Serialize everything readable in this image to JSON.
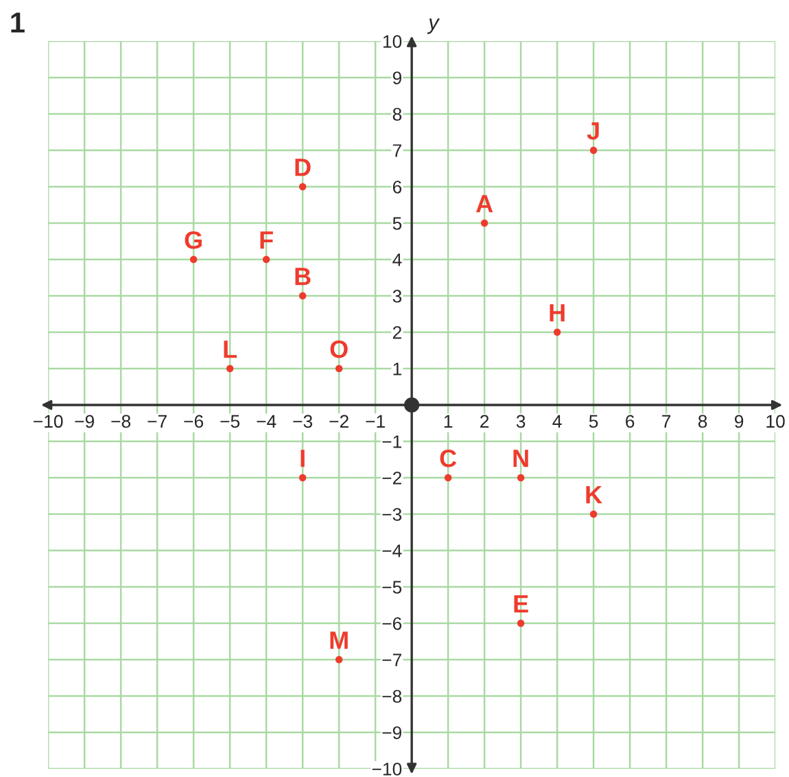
{
  "chart_data": {
    "type": "scatter",
    "title": "1",
    "ylabel": "y",
    "series": [
      {
        "color": "#ee3b2d",
        "x": [
          2,
          -3,
          1,
          -3,
          3,
          -4,
          -6,
          4,
          -3,
          5,
          5,
          -5,
          -2,
          3,
          -2
        ],
        "values": [
          5,
          3,
          -2,
          6,
          -6,
          4,
          4,
          2,
          -2,
          7,
          -3,
          1,
          -7,
          -2,
          1
        ],
        "value_labels": [
          "A",
          "B",
          "C",
          "D",
          "E",
          "F",
          "G",
          "H",
          "I",
          "J",
          "K",
          "L",
          "M",
          "N",
          "O"
        ]
      }
    ],
    "marker": "circle",
    "grid": true,
    "legend": false,
    "xlim": [
      -10,
      10
    ],
    "ylim": [
      -10,
      10
    ],
    "xticks": [
      {
        "value": -10,
        "label": "−10"
      },
      {
        "value": -9,
        "label": "−9"
      },
      {
        "value": -8,
        "label": "−8"
      },
      {
        "value": -7,
        "label": "−7"
      },
      {
        "value": -6,
        "label": "−6"
      },
      {
        "value": -5,
        "label": "−5"
      },
      {
        "value": -4,
        "label": "−4"
      },
      {
        "value": -3,
        "label": "−3"
      },
      {
        "value": -2,
        "label": "−2"
      },
      {
        "value": -1,
        "label": "−1"
      },
      {
        "value": 0,
        "label": null
      },
      1,
      2,
      3,
      4,
      5,
      6,
      7,
      8,
      9,
      10
    ],
    "yticks": [
      {
        "value": -10,
        "label": "−10"
      },
      {
        "value": -9,
        "label": "−9"
      },
      {
        "value": -8,
        "label": "−8"
      },
      {
        "value": -7,
        "label": "−7"
      },
      {
        "value": -6,
        "label": "−6"
      },
      {
        "value": -5,
        "label": "−5"
      },
      {
        "value": -4,
        "label": "−4"
      },
      {
        "value": -3,
        "label": "−3"
      },
      {
        "value": -2,
        "label": "−2"
      },
      {
        "value": -1,
        "label": "−1"
      },
      {
        "value": 0,
        "label": null
      },
      1,
      2,
      3,
      4,
      5,
      6,
      7,
      8,
      9,
      10
    ]
  }
}
